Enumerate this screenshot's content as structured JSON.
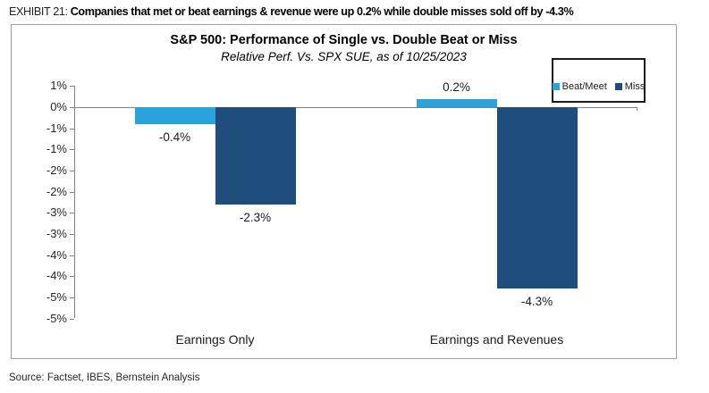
{
  "header": {
    "exhibit_label": "EXHIBIT 21:",
    "headline": "Companies that met or beat earnings & revenue were up 0.2% while double misses sold off by -4.3%"
  },
  "chart": {
    "title": "S&P 500: Performance of Single vs. Double Beat or Miss",
    "subtitle": "Relative Perf. Vs. SPX SUE, as of 10/25/2023"
  },
  "chart_data": {
    "type": "bar",
    "categories": [
      "Earnings Only",
      "Earnings and Revenues"
    ],
    "series": [
      {
        "name": "Beat/Meet",
        "color": "#2AA2DB",
        "values": [
          -0.4,
          0.2
        ],
        "labels": [
          "-0.4%",
          "0.2%"
        ]
      },
      {
        "name": "Miss",
        "color": "#1F4E7C",
        "values": [
          -2.3,
          -4.3
        ],
        "labels": [
          "-2.3%",
          "-4.3%"
        ]
      }
    ],
    "ylim": [
      -5.0,
      0.5
    ],
    "ytick_step": 0.5,
    "ytick_labels": [
      "1%",
      "0%",
      "-1%",
      "-1%",
      "-2%",
      "-2%",
      "-3%",
      "-3%",
      "-4%",
      "-4%",
      "-5%",
      "-5%"
    ],
    "grid": false,
    "legend_position": "top-right",
    "zero_line": true
  },
  "source": "Source: Factset, IBES, Bernstein Analysis"
}
